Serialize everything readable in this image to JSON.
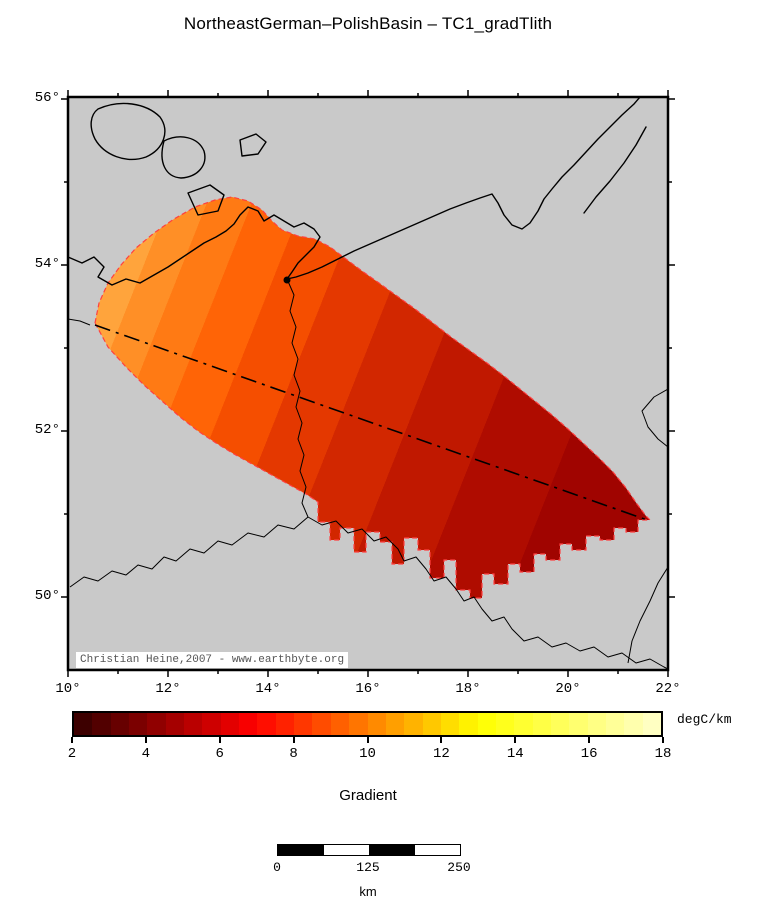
{
  "title": "NortheastGerman–PolishBasin – TC1_gradTlith",
  "map": {
    "attribution": "Christian Heine,2007 - www.earthbyte.org",
    "lat_tick_labels": [
      "56°",
      "54°",
      "52°",
      "50°"
    ],
    "lon_tick_labels": [
      "10°",
      "12°",
      "14°",
      "16°",
      "18°",
      "20°",
      "22°"
    ],
    "background_color": "#c9c9c9",
    "outline_color": "#ff4040",
    "basin_gradient": [
      {
        "o": "0%",
        "c": "#ffa43c"
      },
      {
        "o": "5%",
        "c": "#ffa43c"
      },
      {
        "o": "5%",
        "c": "#ff8f26"
      },
      {
        "o": "11%",
        "c": "#ff8f26"
      },
      {
        "o": "11%",
        "c": "#ff7a14"
      },
      {
        "o": "18%",
        "c": "#ff7a14"
      },
      {
        "o": "18%",
        "c": "#ff6406"
      },
      {
        "o": "26%",
        "c": "#ff6406"
      },
      {
        "o": "26%",
        "c": "#f54e00"
      },
      {
        "o": "35%",
        "c": "#f54e00"
      },
      {
        "o": "35%",
        "c": "#e43800"
      },
      {
        "o": "45%",
        "c": "#e43800"
      },
      {
        "o": "45%",
        "c": "#d22700"
      },
      {
        "o": "56%",
        "c": "#d22700"
      },
      {
        "o": "56%",
        "c": "#c01800"
      },
      {
        "o": "68%",
        "c": "#c01800"
      },
      {
        "o": "68%",
        "c": "#af0c00"
      },
      {
        "o": "82%",
        "c": "#af0c00"
      },
      {
        "o": "82%",
        "c": "#a00400"
      },
      {
        "o": "100%",
        "c": "#a00400"
      }
    ]
  },
  "colorbar": {
    "unit": "degC/km",
    "title": "Gradient",
    "tick_labels": [
      "2",
      "4",
      "6",
      "8",
      "10",
      "12",
      "14",
      "16",
      "18"
    ],
    "range": [
      2,
      18
    ],
    "colors": [
      "#3d0000",
      "#520000",
      "#670000",
      "#7b0000",
      "#900000",
      "#a50000",
      "#ba0000",
      "#ce0000",
      "#e30000",
      "#f80000",
      "#ff0e00",
      "#ff2200",
      "#ff3700",
      "#ff4c00",
      "#ff6000",
      "#ff7500",
      "#ff8a00",
      "#ff9f00",
      "#ffb300",
      "#ffc800",
      "#ffdd00",
      "#fff200",
      "#ffff07",
      "#ffff1c",
      "#ffff31",
      "#ffff45",
      "#ffff5a",
      "#ffff6f",
      "#ffff84",
      "#ffff98",
      "#ffffad",
      "#ffffc2"
    ]
  },
  "scalebar": {
    "tick_labels": [
      "0",
      "125",
      "250"
    ],
    "unit": "km",
    "segment_colors": [
      "#000000",
      "#ffffff",
      "#000000",
      "#ffffff"
    ]
  }
}
